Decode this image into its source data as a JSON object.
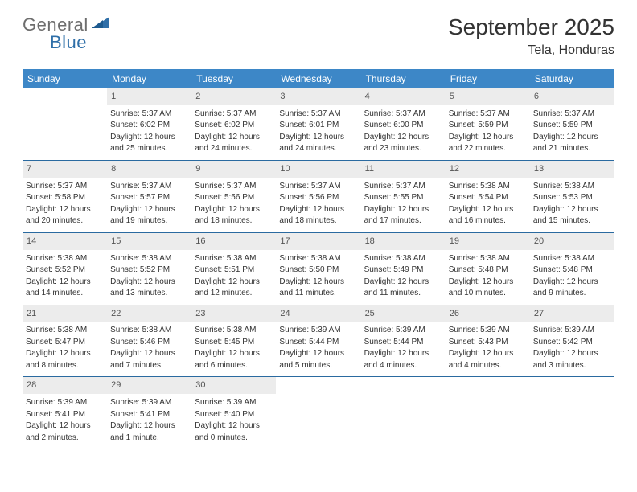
{
  "logo": {
    "text_gray": "General",
    "text_blue": "Blue"
  },
  "title": "September 2025",
  "location": "Tela, Honduras",
  "colors": {
    "header_bg": "#3d87c7",
    "header_text": "#ffffff",
    "daynum_bg": "#ececec",
    "week_border": "#2a6aa0",
    "body_text": "#333333"
  },
  "days_of_week": [
    "Sunday",
    "Monday",
    "Tuesday",
    "Wednesday",
    "Thursday",
    "Friday",
    "Saturday"
  ],
  "weeks": [
    [
      null,
      {
        "n": "1",
        "sr": "Sunrise: 5:37 AM",
        "ss": "Sunset: 6:02 PM",
        "dl1": "Daylight: 12 hours",
        "dl2": "and 25 minutes."
      },
      {
        "n": "2",
        "sr": "Sunrise: 5:37 AM",
        "ss": "Sunset: 6:02 PM",
        "dl1": "Daylight: 12 hours",
        "dl2": "and 24 minutes."
      },
      {
        "n": "3",
        "sr": "Sunrise: 5:37 AM",
        "ss": "Sunset: 6:01 PM",
        "dl1": "Daylight: 12 hours",
        "dl2": "and 24 minutes."
      },
      {
        "n": "4",
        "sr": "Sunrise: 5:37 AM",
        "ss": "Sunset: 6:00 PM",
        "dl1": "Daylight: 12 hours",
        "dl2": "and 23 minutes."
      },
      {
        "n": "5",
        "sr": "Sunrise: 5:37 AM",
        "ss": "Sunset: 5:59 PM",
        "dl1": "Daylight: 12 hours",
        "dl2": "and 22 minutes."
      },
      {
        "n": "6",
        "sr": "Sunrise: 5:37 AM",
        "ss": "Sunset: 5:59 PM",
        "dl1": "Daylight: 12 hours",
        "dl2": "and 21 minutes."
      }
    ],
    [
      {
        "n": "7",
        "sr": "Sunrise: 5:37 AM",
        "ss": "Sunset: 5:58 PM",
        "dl1": "Daylight: 12 hours",
        "dl2": "and 20 minutes."
      },
      {
        "n": "8",
        "sr": "Sunrise: 5:37 AM",
        "ss": "Sunset: 5:57 PM",
        "dl1": "Daylight: 12 hours",
        "dl2": "and 19 minutes."
      },
      {
        "n": "9",
        "sr": "Sunrise: 5:37 AM",
        "ss": "Sunset: 5:56 PM",
        "dl1": "Daylight: 12 hours",
        "dl2": "and 18 minutes."
      },
      {
        "n": "10",
        "sr": "Sunrise: 5:37 AM",
        "ss": "Sunset: 5:56 PM",
        "dl1": "Daylight: 12 hours",
        "dl2": "and 18 minutes."
      },
      {
        "n": "11",
        "sr": "Sunrise: 5:37 AM",
        "ss": "Sunset: 5:55 PM",
        "dl1": "Daylight: 12 hours",
        "dl2": "and 17 minutes."
      },
      {
        "n": "12",
        "sr": "Sunrise: 5:38 AM",
        "ss": "Sunset: 5:54 PM",
        "dl1": "Daylight: 12 hours",
        "dl2": "and 16 minutes."
      },
      {
        "n": "13",
        "sr": "Sunrise: 5:38 AM",
        "ss": "Sunset: 5:53 PM",
        "dl1": "Daylight: 12 hours",
        "dl2": "and 15 minutes."
      }
    ],
    [
      {
        "n": "14",
        "sr": "Sunrise: 5:38 AM",
        "ss": "Sunset: 5:52 PM",
        "dl1": "Daylight: 12 hours",
        "dl2": "and 14 minutes."
      },
      {
        "n": "15",
        "sr": "Sunrise: 5:38 AM",
        "ss": "Sunset: 5:52 PM",
        "dl1": "Daylight: 12 hours",
        "dl2": "and 13 minutes."
      },
      {
        "n": "16",
        "sr": "Sunrise: 5:38 AM",
        "ss": "Sunset: 5:51 PM",
        "dl1": "Daylight: 12 hours",
        "dl2": "and 12 minutes."
      },
      {
        "n": "17",
        "sr": "Sunrise: 5:38 AM",
        "ss": "Sunset: 5:50 PM",
        "dl1": "Daylight: 12 hours",
        "dl2": "and 11 minutes."
      },
      {
        "n": "18",
        "sr": "Sunrise: 5:38 AM",
        "ss": "Sunset: 5:49 PM",
        "dl1": "Daylight: 12 hours",
        "dl2": "and 11 minutes."
      },
      {
        "n": "19",
        "sr": "Sunrise: 5:38 AM",
        "ss": "Sunset: 5:48 PM",
        "dl1": "Daylight: 12 hours",
        "dl2": "and 10 minutes."
      },
      {
        "n": "20",
        "sr": "Sunrise: 5:38 AM",
        "ss": "Sunset: 5:48 PM",
        "dl1": "Daylight: 12 hours",
        "dl2": "and 9 minutes."
      }
    ],
    [
      {
        "n": "21",
        "sr": "Sunrise: 5:38 AM",
        "ss": "Sunset: 5:47 PM",
        "dl1": "Daylight: 12 hours",
        "dl2": "and 8 minutes."
      },
      {
        "n": "22",
        "sr": "Sunrise: 5:38 AM",
        "ss": "Sunset: 5:46 PM",
        "dl1": "Daylight: 12 hours",
        "dl2": "and 7 minutes."
      },
      {
        "n": "23",
        "sr": "Sunrise: 5:38 AM",
        "ss": "Sunset: 5:45 PM",
        "dl1": "Daylight: 12 hours",
        "dl2": "and 6 minutes."
      },
      {
        "n": "24",
        "sr": "Sunrise: 5:39 AM",
        "ss": "Sunset: 5:44 PM",
        "dl1": "Daylight: 12 hours",
        "dl2": "and 5 minutes."
      },
      {
        "n": "25",
        "sr": "Sunrise: 5:39 AM",
        "ss": "Sunset: 5:44 PM",
        "dl1": "Daylight: 12 hours",
        "dl2": "and 4 minutes."
      },
      {
        "n": "26",
        "sr": "Sunrise: 5:39 AM",
        "ss": "Sunset: 5:43 PM",
        "dl1": "Daylight: 12 hours",
        "dl2": "and 4 minutes."
      },
      {
        "n": "27",
        "sr": "Sunrise: 5:39 AM",
        "ss": "Sunset: 5:42 PM",
        "dl1": "Daylight: 12 hours",
        "dl2": "and 3 minutes."
      }
    ],
    [
      {
        "n": "28",
        "sr": "Sunrise: 5:39 AM",
        "ss": "Sunset: 5:41 PM",
        "dl1": "Daylight: 12 hours",
        "dl2": "and 2 minutes."
      },
      {
        "n": "29",
        "sr": "Sunrise: 5:39 AM",
        "ss": "Sunset: 5:41 PM",
        "dl1": "Daylight: 12 hours",
        "dl2": "and 1 minute."
      },
      {
        "n": "30",
        "sr": "Sunrise: 5:39 AM",
        "ss": "Sunset: 5:40 PM",
        "dl1": "Daylight: 12 hours",
        "dl2": "and 0 minutes."
      },
      null,
      null,
      null,
      null
    ]
  ]
}
